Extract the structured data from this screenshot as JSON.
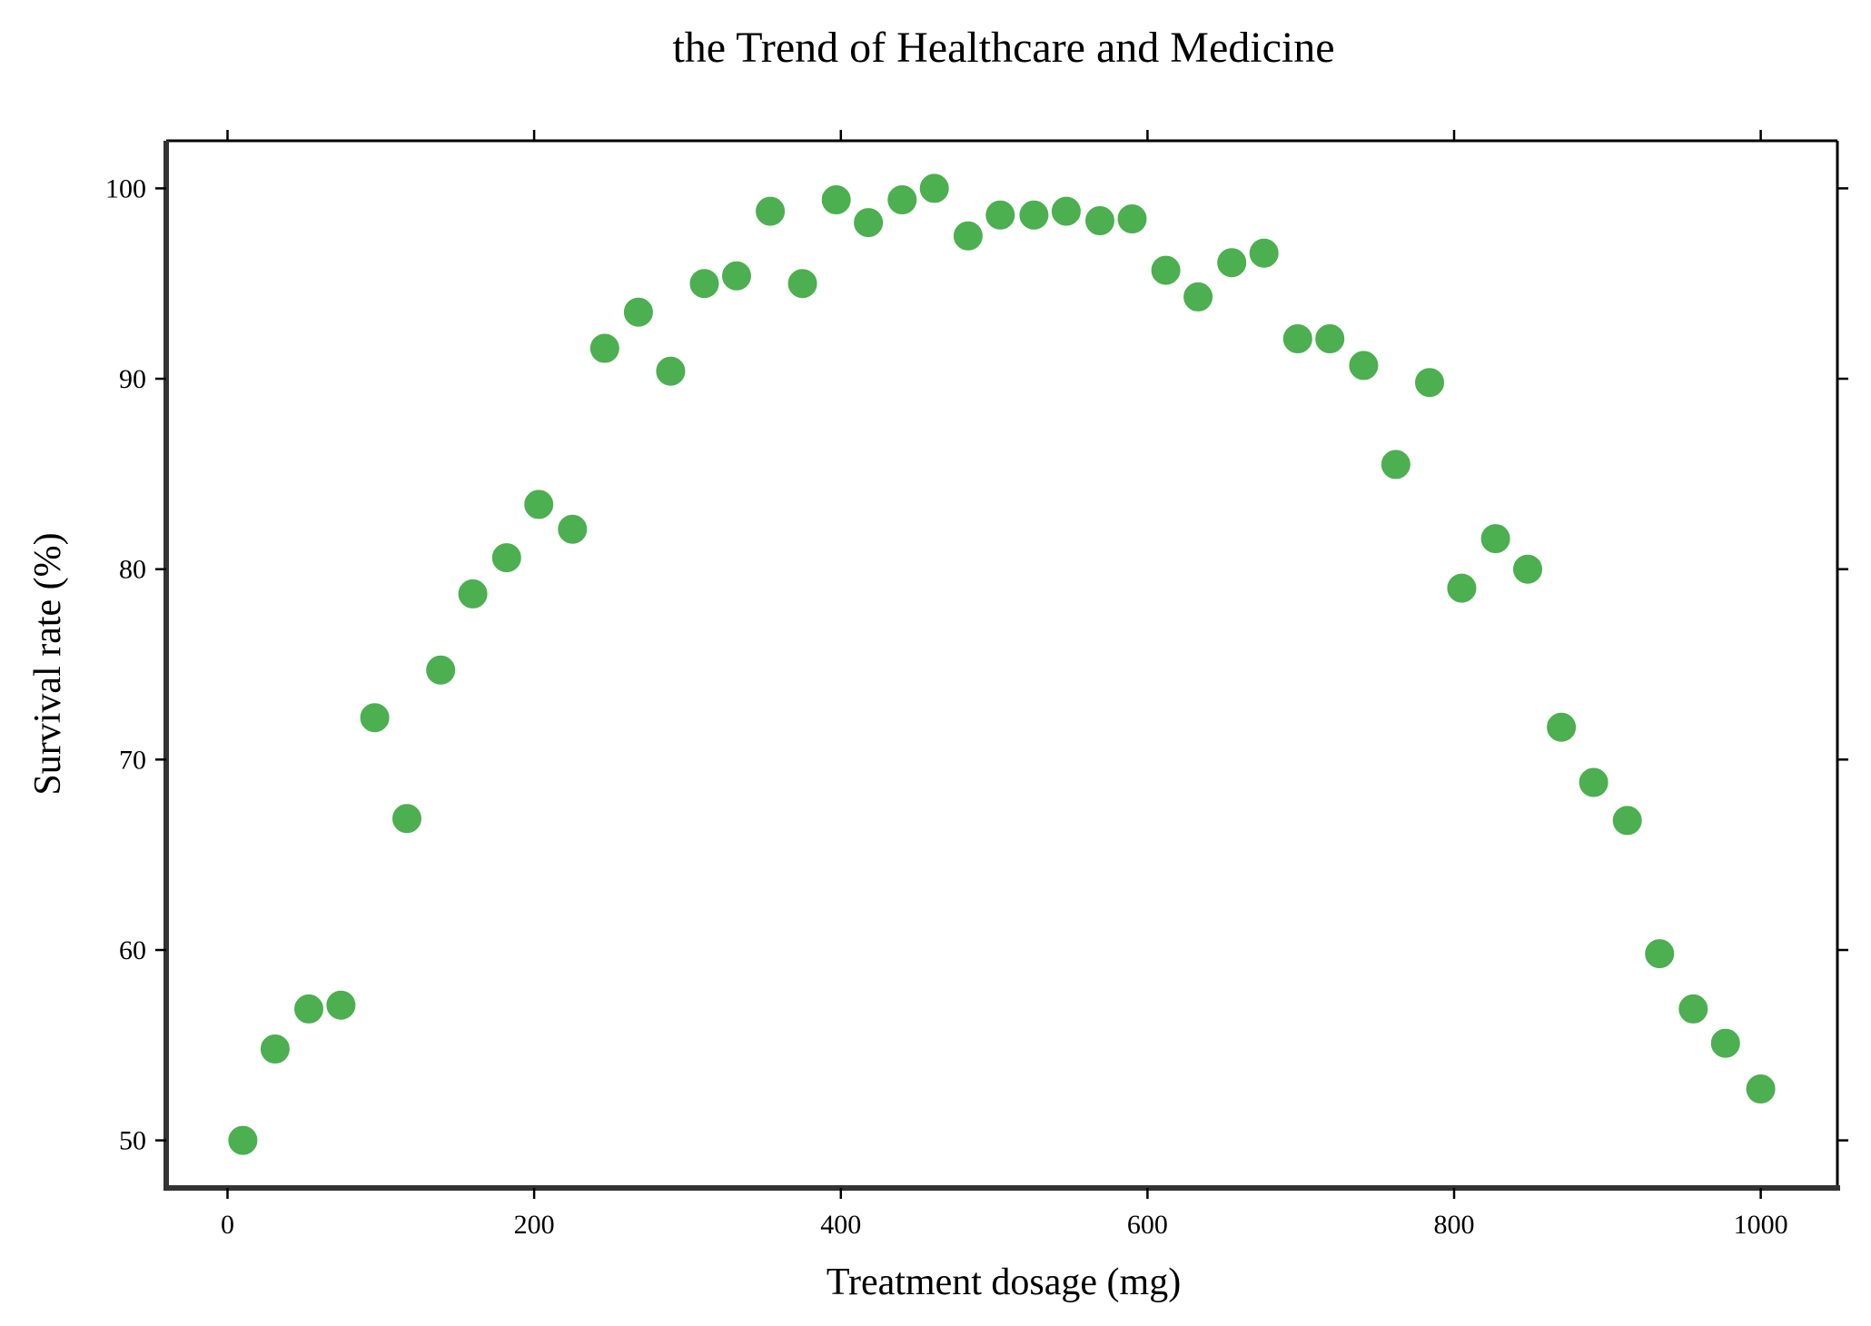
{
  "chart_data": {
    "type": "scatter",
    "title": "the Trend of Healthcare and Medicine",
    "xlabel": "Treatment dosage (mg)",
    "ylabel": "Survival rate (%)",
    "xlim": [
      -40,
      1050
    ],
    "ylim": [
      47.5,
      102.5
    ],
    "x_ticks": [
      0,
      200,
      400,
      600,
      800,
      1000
    ],
    "y_ticks": [
      50,
      60,
      70,
      80,
      90,
      100
    ],
    "grid": false,
    "marker_color": "#4caf50",
    "series": [
      {
        "points": [
          [
            10,
            50.0
          ],
          [
            31,
            54.8
          ],
          [
            53,
            56.9
          ],
          [
            74,
            57.1
          ],
          [
            96,
            72.2
          ],
          [
            117,
            66.9
          ],
          [
            139,
            74.7
          ],
          [
            160,
            78.7
          ],
          [
            182,
            80.6
          ],
          [
            203,
            83.4
          ],
          [
            225,
            82.1
          ],
          [
            246,
            91.6
          ],
          [
            268,
            93.5
          ],
          [
            289,
            90.4
          ],
          [
            311,
            95.0
          ],
          [
            332,
            95.4
          ],
          [
            354,
            98.8
          ],
          [
            375,
            95.0
          ],
          [
            397,
            99.4
          ],
          [
            418,
            98.2
          ],
          [
            440,
            99.4
          ],
          [
            461,
            100.0
          ],
          [
            483,
            97.5
          ],
          [
            504,
            98.6
          ],
          [
            526,
            98.6
          ],
          [
            547,
            98.8
          ],
          [
            569,
            98.3
          ],
          [
            590,
            98.4
          ],
          [
            612,
            95.7
          ],
          [
            633,
            94.3
          ],
          [
            655,
            96.1
          ],
          [
            676,
            96.6
          ],
          [
            698,
            92.1
          ],
          [
            719,
            92.1
          ],
          [
            741,
            90.7
          ],
          [
            762,
            85.5
          ],
          [
            784,
            89.8
          ],
          [
            805,
            79.0
          ],
          [
            827,
            81.6
          ],
          [
            848,
            80.0
          ],
          [
            870,
            71.7
          ],
          [
            891,
            68.8
          ],
          [
            913,
            66.8
          ],
          [
            934,
            59.8
          ],
          [
            956,
            56.9
          ],
          [
            977,
            55.1
          ],
          [
            1000,
            52.7
          ]
        ]
      }
    ]
  }
}
